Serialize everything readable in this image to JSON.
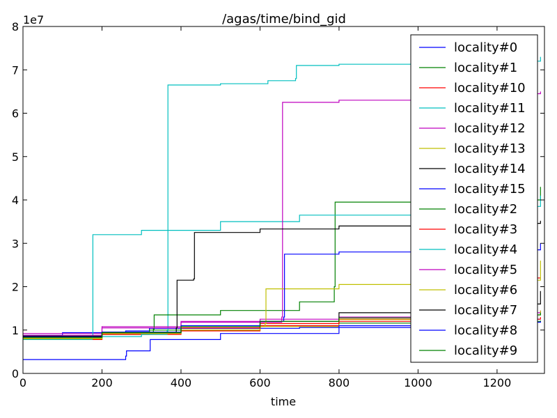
{
  "chart_data": {
    "type": "line",
    "title": "/agas/time/bind_gid",
    "xlabel": "time",
    "ylabel": "",
    "y_multiplier": "1e7",
    "xlim": [
      0,
      1320
    ],
    "ylim": [
      0,
      80000000
    ],
    "x_ticks": [
      0,
      200,
      400,
      600,
      800,
      1000,
      1200
    ],
    "x_tick_labels": [
      "0",
      "200",
      "400",
      "600",
      "800",
      "1000",
      "1200"
    ],
    "y_ticks": [
      0,
      10000000,
      20000000,
      30000000,
      40000000,
      50000000,
      60000000,
      70000000,
      80000000
    ],
    "y_tick_labels": [
      "0",
      "1",
      "2",
      "3",
      "4",
      "5",
      "6",
      "7",
      "8"
    ],
    "grid": false,
    "legend_position": "top-right",
    "series": [
      {
        "name": "locality#0",
        "color": "#0000ff",
        "x": [
          0,
          100,
          260,
          320,
          700,
          1000,
          1310
        ],
        "y": [
          8800000,
          9400000,
          9800000,
          10400000,
          10600000,
          12500000,
          12500000
        ]
      },
      {
        "name": "locality#1",
        "color": "#008000",
        "x": [
          0,
          200,
          320,
          600,
          800,
          1000,
          1310
        ],
        "y": [
          8200000,
          9000000,
          10000000,
          11000000,
          11600000,
          12000000,
          12200000
        ]
      },
      {
        "name": "locality#10",
        "color": "#ff0000",
        "x": [
          0,
          200,
          400,
          600,
          800,
          1000,
          1280,
          1300,
          1310
        ],
        "y": [
          8300000,
          9000000,
          9800000,
          11000000,
          12500000,
          13000000,
          13500000,
          22000000,
          22000000
        ]
      },
      {
        "name": "locality#11",
        "color": "#00bfbf",
        "x": [
          0,
          150,
          300,
          365,
          367,
          500,
          620,
          690,
          692,
          800,
          1000,
          1310
        ],
        "y": [
          8000000,
          8500000,
          9000000,
          9800000,
          66500000,
          66800000,
          67500000,
          68000000,
          71000000,
          71300000,
          72000000,
          73000000
        ]
      },
      {
        "name": "locality#12",
        "color": "#bf00bf",
        "x": [
          0,
          200,
          400,
          600,
          800,
          1000,
          1310
        ],
        "y": [
          9200000,
          10800000,
          12000000,
          12500000,
          13000000,
          14000000,
          14500000
        ]
      },
      {
        "name": "locality#13",
        "color": "#bfbf00",
        "x": [
          0,
          200,
          400,
          600,
          800,
          1000,
          1310
        ],
        "y": [
          8100000,
          9200000,
          10000000,
          10800000,
          12400000,
          13500000,
          14500000
        ]
      },
      {
        "name": "locality#14",
        "color": "#000000",
        "x": [
          0,
          200,
          400,
          600,
          800,
          1000,
          1310
        ],
        "y": [
          8500000,
          9500000,
          10500000,
          12000000,
          14000000,
          16000000,
          19000000
        ]
      },
      {
        "name": "locality#15",
        "color": "#0000ff",
        "x": [
          0,
          260,
          262,
          320,
          322,
          500,
          800,
          1000,
          1310
        ],
        "y": [
          3200000,
          4000000,
          5200000,
          5200000,
          7800000,
          9200000,
          11000000,
          11800000,
          12000000
        ]
      },
      {
        "name": "locality#2",
        "color": "#008000",
        "x": [
          0,
          200,
          330,
          332,
          500,
          700,
          788,
          790,
          1000,
          1310
        ],
        "y": [
          8000000,
          9400000,
          10200000,
          13500000,
          14500000,
          16500000,
          20000000,
          39500000,
          40000000,
          43000000
        ]
      },
      {
        "name": "locality#3",
        "color": "#ff0000",
        "x": [
          0,
          200,
          400,
          600,
          800,
          1000,
          1310
        ],
        "y": [
          7800000,
          9200000,
          10500000,
          11500000,
          12000000,
          12500000,
          13000000
        ]
      },
      {
        "name": "locality#4",
        "color": "#00bfbf",
        "x": [
          0,
          175,
          177,
          300,
          500,
          700,
          1000,
          1310
        ],
        "y": [
          7800000,
          8500000,
          32000000,
          33000000,
          35000000,
          36500000,
          38500000,
          41000000
        ]
      },
      {
        "name": "locality#5",
        "color": "#bf00bf",
        "x": [
          0,
          200,
          400,
          655,
          657,
          800,
          1000,
          1310
        ],
        "y": [
          8800000,
          10500000,
          11800000,
          13000000,
          62500000,
          63000000,
          64500000,
          65000000
        ]
      },
      {
        "name": "locality#6",
        "color": "#bfbf00",
        "x": [
          0,
          200,
          400,
          613,
          615,
          800,
          1000,
          1310
        ],
        "y": [
          8000000,
          9200000,
          10800000,
          11500000,
          19500000,
          20500000,
          21500000,
          26000000
        ]
      },
      {
        "name": "locality#7",
        "color": "#000000",
        "x": [
          0,
          200,
          388,
          390,
          432,
          434,
          600,
          800,
          1000,
          1310
        ],
        "y": [
          8600000,
          9500000,
          10500000,
          21500000,
          21800000,
          32500000,
          33300000,
          34000000,
          34600000,
          35200000
        ]
      },
      {
        "name": "locality#8",
        "color": "#0000ff",
        "x": [
          0,
          200,
          400,
          600,
          660,
          662,
          800,
          1000,
          1310
        ],
        "y": [
          8400000,
          9500000,
          11000000,
          12000000,
          13000000,
          27500000,
          28000000,
          28500000,
          30000000
        ]
      },
      {
        "name": "locality#9",
        "color": "#008000",
        "x": [
          0,
          200,
          400,
          600,
          800,
          1000,
          1310
        ],
        "y": [
          8300000,
          9400000,
          10800000,
          12000000,
          12800000,
          13500000,
          14000000
        ]
      }
    ]
  }
}
